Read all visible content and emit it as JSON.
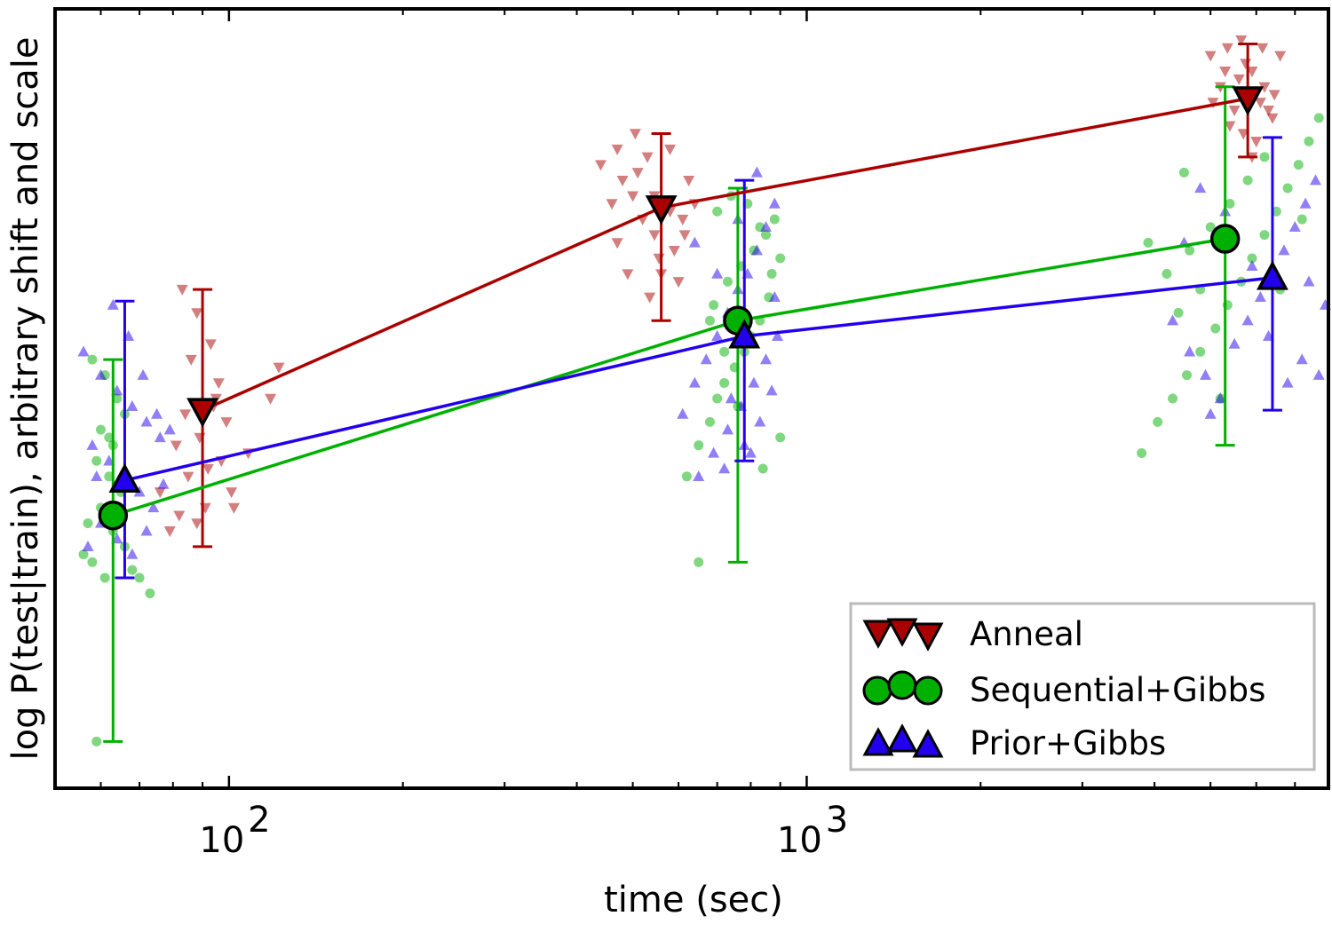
{
  "chart_data": {
    "type": "scatter",
    "xlabel": "time (sec)",
    "ylabel": "log P(test|train),  arbitrary shift and scale",
    "xscale": "log",
    "xlim": [
      50,
      8000
    ],
    "ylim": [
      0,
      100
    ],
    "x_ticks": [
      {
        "value": 100,
        "base": "10",
        "exp": "2"
      },
      {
        "value": 1000,
        "base": "10",
        "exp": "3"
      }
    ],
    "minor_x_ticks": [
      60,
      70,
      80,
      90,
      200,
      300,
      400,
      500,
      600,
      700,
      800,
      900,
      2000,
      3000,
      4000,
      5000,
      6000,
      7000
    ],
    "legend_position": "lower-right",
    "series": [
      {
        "name": "Anneal",
        "color": "#aa0000",
        "marker": "triangle-down",
        "x": [
          90,
          560,
          5800
        ],
        "y": [
          48.5,
          74.5,
          88.5
        ],
        "err_low": [
          31,
          60,
          81
        ],
        "err_high": [
          64,
          84,
          95.5
        ],
        "scatter": [
          [
            83,
            64
          ],
          [
            88,
            61
          ],
          [
            93,
            57
          ],
          [
            96,
            52
          ],
          [
            84,
            48
          ],
          [
            89,
            45
          ],
          [
            97,
            42
          ],
          [
            85,
            40
          ],
          [
            101,
            38
          ],
          [
            91,
            36
          ],
          [
            82,
            35
          ],
          [
            79,
            33
          ],
          [
            76,
            38
          ],
          [
            92,
            41
          ],
          [
            99,
            47
          ],
          [
            108,
            43
          ],
          [
            118,
            50
          ],
          [
            122,
            54
          ],
          [
            86,
            55
          ],
          [
            95,
            50
          ],
          [
            102,
            36
          ],
          [
            88,
            34
          ],
          [
            81,
            44
          ],
          [
            94,
            49
          ],
          [
            440,
            80
          ],
          [
            470,
            82
          ],
          [
            510,
            79
          ],
          [
            545,
            76
          ],
          [
            580,
            74
          ],
          [
            615,
            71
          ],
          [
            460,
            75
          ],
          [
            520,
            73
          ],
          [
            555,
            68
          ],
          [
            600,
            65
          ],
          [
            490,
            66
          ],
          [
            530,
            81
          ],
          [
            580,
            82
          ],
          [
            625,
            78
          ],
          [
            470,
            70
          ],
          [
            500,
            76
          ],
          [
            545,
            71
          ],
          [
            590,
            69
          ],
          [
            640,
            75
          ],
          [
            505,
            84
          ],
          [
            560,
            66
          ],
          [
            480,
            78
          ],
          [
            610,
            73
          ],
          [
            535,
            63
          ],
          [
            5000,
            94
          ],
          [
            5300,
            92
          ],
          [
            5600,
            91
          ],
          [
            5800,
            89
          ],
          [
            6100,
            88
          ],
          [
            6400,
            86
          ],
          [
            5400,
            85
          ],
          [
            5700,
            84
          ],
          [
            6000,
            83
          ],
          [
            6300,
            87
          ],
          [
            5200,
            90
          ],
          [
            5500,
            87
          ],
          [
            5900,
            92
          ],
          [
            6200,
            90
          ],
          [
            6600,
            94
          ],
          [
            5350,
            95
          ],
          [
            5650,
            96
          ],
          [
            6150,
            95
          ],
          [
            5900,
            81
          ],
          [
            6450,
            89
          ],
          [
            5050,
            88
          ],
          [
            5750,
            93
          ]
        ]
      },
      {
        "name": "Sequential+Gibbs",
        "color": "#00b000",
        "marker": "circle",
        "x": [
          63,
          760,
          5300
        ],
        "y": [
          35,
          60,
          70.5
        ],
        "err_low": [
          6,
          29,
          44
        ],
        "err_high": [
          55,
          77,
          90
        ],
        "scatter": [
          [
            58,
            55
          ],
          [
            61,
            53
          ],
          [
            64,
            50
          ],
          [
            66,
            48
          ],
          [
            60,
            46
          ],
          [
            63,
            44
          ],
          [
            59,
            42
          ],
          [
            62,
            40
          ],
          [
            65,
            38
          ],
          [
            60,
            36
          ],
          [
            57,
            34
          ],
          [
            63,
            33
          ],
          [
            66,
            31
          ],
          [
            58,
            29
          ],
          [
            61,
            27
          ],
          [
            68,
            28
          ],
          [
            70,
            27
          ],
          [
            73,
            25
          ],
          [
            67,
            39
          ],
          [
            59,
            6
          ],
          [
            56,
            30
          ],
          [
            62,
            45
          ],
          [
            620,
            40
          ],
          [
            650,
            44
          ],
          [
            680,
            47
          ],
          [
            700,
            50
          ],
          [
            720,
            52
          ],
          [
            750,
            54
          ],
          [
            780,
            56
          ],
          [
            800,
            58
          ],
          [
            830,
            60
          ],
          [
            860,
            63
          ],
          [
            690,
            62
          ],
          [
            730,
            65
          ],
          [
            770,
            67
          ],
          [
            810,
            69
          ],
          [
            850,
            71
          ],
          [
            880,
            73
          ],
          [
            700,
            74
          ],
          [
            740,
            76
          ],
          [
            790,
            75
          ],
          [
            830,
            72
          ],
          [
            870,
            66
          ],
          [
            900,
            68
          ],
          [
            650,
            29
          ],
          [
            760,
            49
          ],
          [
            840,
            41
          ],
          [
            720,
            56
          ],
          [
            680,
            60
          ],
          [
            900,
            45
          ],
          [
            3800,
            43
          ],
          [
            4050,
            47
          ],
          [
            4300,
            50
          ],
          [
            4550,
            53
          ],
          [
            4800,
            56
          ],
          [
            5100,
            59
          ],
          [
            5350,
            62
          ],
          [
            5650,
            65
          ],
          [
            5900,
            68
          ],
          [
            6200,
            71
          ],
          [
            6500,
            74
          ],
          [
            6800,
            77
          ],
          [
            7100,
            80
          ],
          [
            7400,
            83
          ],
          [
            7700,
            86
          ],
          [
            4200,
            66
          ],
          [
            4600,
            69
          ],
          [
            5000,
            72
          ],
          [
            5400,
            75
          ],
          [
            5800,
            78
          ],
          [
            6200,
            81
          ],
          [
            4400,
            61
          ],
          [
            4800,
            64
          ],
          [
            3900,
            70
          ],
          [
            7200,
            73
          ],
          [
            6600,
            64
          ],
          [
            5200,
            50
          ],
          [
            4500,
            79
          ]
        ]
      },
      {
        "name": "Prior+Gibbs",
        "color": "#2200ee",
        "marker": "triangle-up",
        "x": [
          66,
          780,
          6400
        ],
        "y": [
          39.5,
          58,
          65.5
        ],
        "err_low": [
          27,
          42,
          48.5
        ],
        "err_high": [
          62.5,
          78,
          83.5
        ],
        "scatter": [
          [
            56,
            56
          ],
          [
            60,
            53
          ],
          [
            64,
            51
          ],
          [
            68,
            49
          ],
          [
            72,
            47
          ],
          [
            76,
            45
          ],
          [
            58,
            44
          ],
          [
            62,
            42
          ],
          [
            66,
            40
          ],
          [
            70,
            38
          ],
          [
            74,
            36
          ],
          [
            60,
            34
          ],
          [
            64,
            32
          ],
          [
            68,
            30
          ],
          [
            57,
            31
          ],
          [
            59,
            40
          ],
          [
            63,
            62
          ],
          [
            67,
            58
          ],
          [
            71,
            53
          ],
          [
            75,
            48
          ],
          [
            79,
            46
          ],
          [
            77,
            39
          ],
          [
            72,
            33
          ],
          [
            610,
            48
          ],
          [
            640,
            52
          ],
          [
            670,
            55
          ],
          [
            700,
            58
          ],
          [
            730,
            61
          ],
          [
            760,
            64
          ],
          [
            790,
            66
          ],
          [
            820,
            69
          ],
          [
            850,
            72
          ],
          [
            880,
            75
          ],
          [
            650,
            40
          ],
          [
            690,
            43
          ],
          [
            730,
            46
          ],
          [
            770,
            49
          ],
          [
            810,
            52
          ],
          [
            850,
            55
          ],
          [
            890,
            58
          ],
          [
            720,
            41
          ],
          [
            780,
            44
          ],
          [
            830,
            47
          ],
          [
            870,
            51
          ],
          [
            640,
            70
          ],
          [
            700,
            66
          ],
          [
            760,
            73
          ],
          [
            820,
            79
          ],
          [
            880,
            63
          ],
          [
            740,
            50
          ],
          [
            800,
            43
          ],
          [
            4300,
            60
          ],
          [
            4600,
            56
          ],
          [
            4900,
            53
          ],
          [
            5200,
            50
          ],
          [
            5500,
            57
          ],
          [
            5800,
            60
          ],
          [
            6100,
            63
          ],
          [
            6400,
            66
          ],
          [
            6700,
            69
          ],
          [
            7000,
            72
          ],
          [
            7300,
            75
          ],
          [
            7600,
            78
          ],
          [
            7900,
            62
          ],
          [
            7200,
            55
          ],
          [
            6800,
            52
          ],
          [
            6300,
            58
          ],
          [
            5900,
            67
          ],
          [
            5300,
            74
          ],
          [
            4800,
            77
          ],
          [
            4500,
            70
          ],
          [
            7700,
            53
          ],
          [
            5000,
            48
          ],
          [
            7400,
            65
          ]
        ]
      }
    ]
  }
}
